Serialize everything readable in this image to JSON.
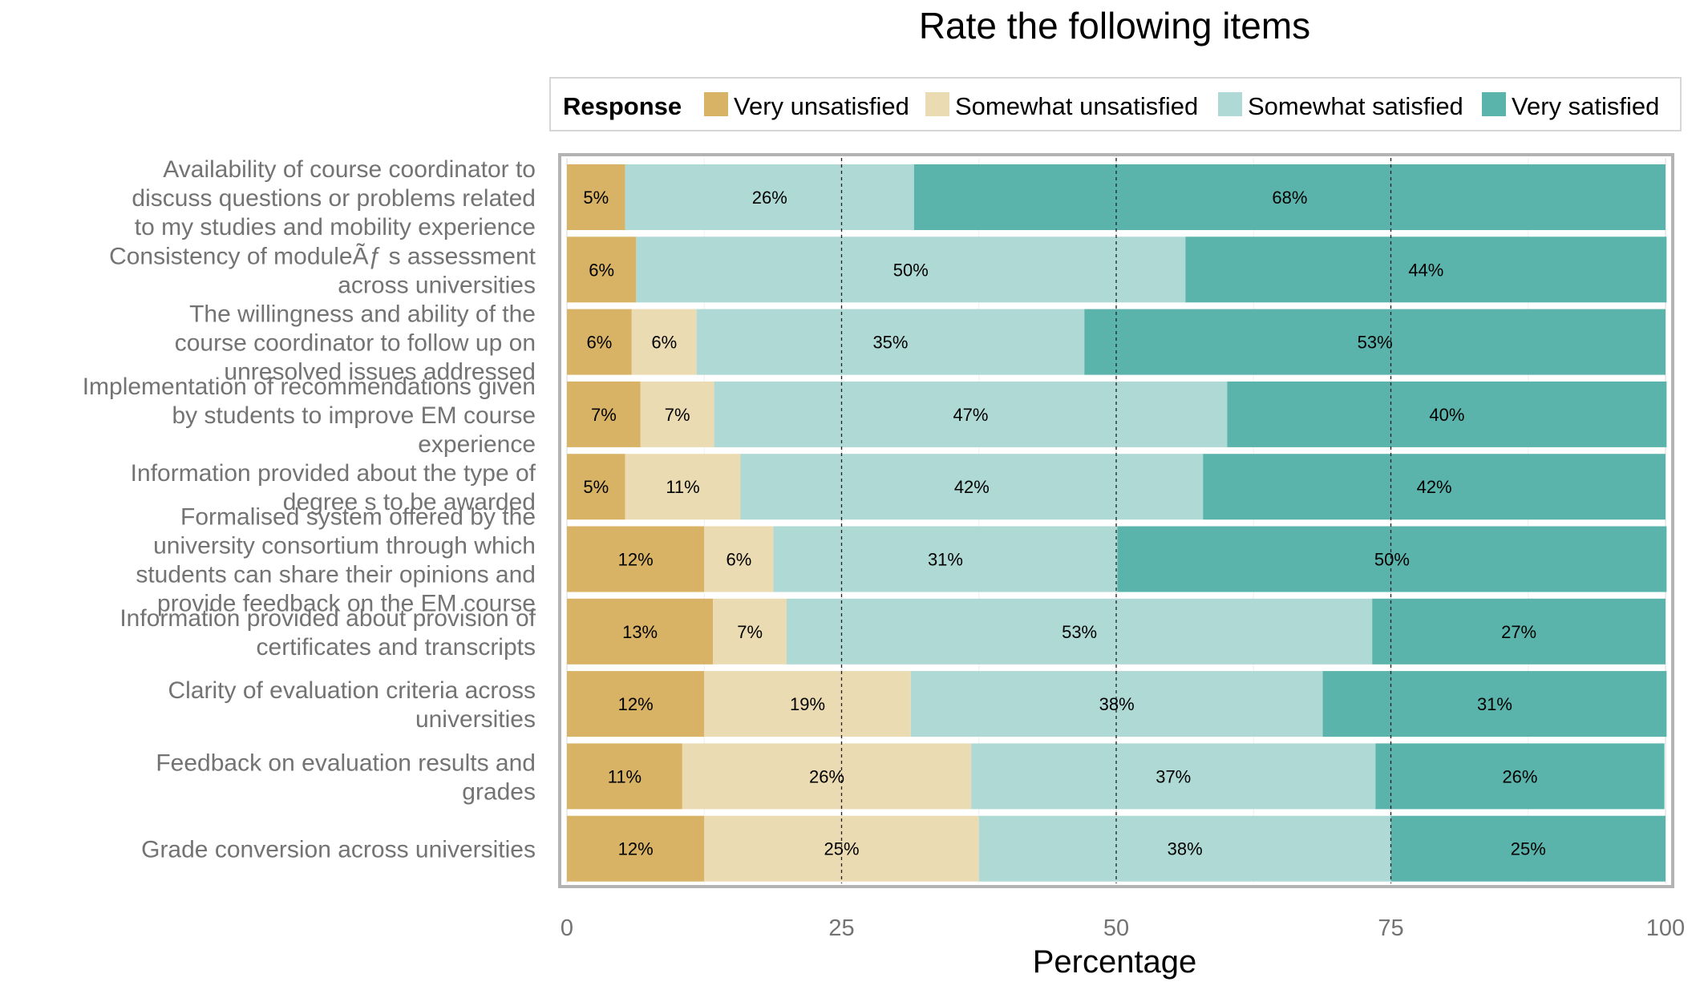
{
  "chart_data": {
    "type": "bar",
    "orientation": "horizontal",
    "stacked": true,
    "title": "Rate the following items",
    "xlabel": "Percentage",
    "xlim": [
      0,
      100
    ],
    "xticks": [
      0,
      25,
      50,
      75,
      100
    ],
    "grid": true,
    "legend": {
      "title": "Response",
      "position": "top",
      "entries": [
        "Very unsatisfied",
        "Somewhat unsatisfied",
        "Somewhat satisfied",
        "Very satisfied"
      ]
    },
    "colors": [
      "#d8b365",
      "#ebdbb2",
      "#aed9d5",
      "#5ab4ac"
    ],
    "categories": [
      [
        "Availability of course coordinator to",
        "discuss questions or problems related",
        "to my studies and mobility experience"
      ],
      [
        "Consistency of moduleÃƒ s assessment",
        "across universities"
      ],
      [
        "The willingness and ability of the",
        "course coordinator to follow up on",
        "unresolved issues addressed"
      ],
      [
        "Implementation of recommendations given",
        "by students to improve EM course",
        "experience"
      ],
      [
        "Information provided about the type of",
        "degree s to be awarded"
      ],
      [
        "Formalised system offered by the",
        "university consortium through which",
        "students can share their opinions and",
        "provide feedback on the EM course"
      ],
      [
        "Information provided about provision of",
        "certificates and transcripts"
      ],
      [
        "Clarity of evaluation criteria across",
        "universities"
      ],
      [
        "Feedback on evaluation results and",
        "grades"
      ],
      [
        "Grade conversion across universities"
      ]
    ],
    "series": [
      {
        "name": "Very unsatisfied",
        "values": [
          5.3,
          6.3,
          5.9,
          6.7,
          5.3,
          12.5,
          13.3,
          12.5,
          10.5,
          12.5
        ],
        "labels": [
          "5%",
          "6%",
          "6%",
          "7%",
          "5%",
          "12%",
          "13%",
          "12%",
          "11%",
          "12%"
        ]
      },
      {
        "name": "Somewhat unsatisfied",
        "values": [
          0,
          0,
          5.9,
          6.7,
          10.5,
          6.3,
          6.7,
          18.8,
          26.3,
          25
        ],
        "labels": [
          "",
          "",
          "6%",
          "7%",
          "11%",
          "6%",
          "7%",
          "19%",
          "26%",
          "25%"
        ]
      },
      {
        "name": "Somewhat satisfied",
        "values": [
          26.3,
          50,
          35.3,
          46.7,
          42.1,
          31.3,
          53.3,
          37.5,
          36.8,
          37.5
        ],
        "labels": [
          "26%",
          "50%",
          "35%",
          "47%",
          "42%",
          "31%",
          "53%",
          "38%",
          "37%",
          "38%"
        ]
      },
      {
        "name": "Very satisfied",
        "values": [
          68.4,
          43.8,
          52.9,
          40,
          42.1,
          50,
          26.7,
          31.3,
          26.3,
          25
        ],
        "labels": [
          "68%",
          "44%",
          "53%",
          "40%",
          "42%",
          "50%",
          "27%",
          "31%",
          "26%",
          "25%"
        ]
      }
    ]
  }
}
